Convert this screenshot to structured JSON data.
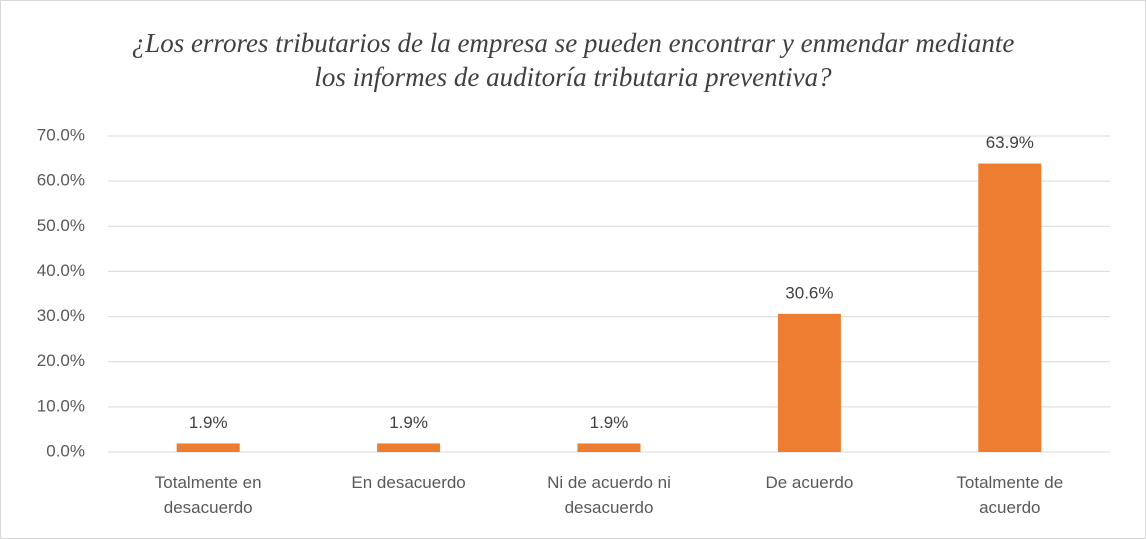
{
  "chart_data": {
    "type": "bar",
    "title": "¿Los errores tributarios de la empresa se pueden encontrar y enmendar mediante los informes de auditoría tributaria preventiva?",
    "categories": [
      "Totalmente en desacuerdo",
      "En desacuerdo",
      "Ni de acuerdo ni desacuerdo",
      "De acuerdo",
      "Totalmente de acuerdo"
    ],
    "values": [
      1.9,
      1.9,
      1.9,
      30.6,
      63.9
    ],
    "value_labels": [
      "1.9%",
      "1.9%",
      "1.9%",
      "30.6%",
      "63.9%"
    ],
    "color": "#ed7d31",
    "ylim": [
      0,
      70
    ],
    "yticks": [
      {
        "value": 0,
        "label": "0.0%"
      },
      {
        "value": 10,
        "label": "10.0%"
      },
      {
        "value": 20,
        "label": "20.0%"
      },
      {
        "value": 30,
        "label": "30.0%"
      },
      {
        "value": 40,
        "label": "40.0%"
      },
      {
        "value": 50,
        "label": "50.0%"
      },
      {
        "value": 60,
        "label": "60.0%"
      },
      {
        "value": 70,
        "label": "70.0%"
      }
    ],
    "grid": true
  }
}
